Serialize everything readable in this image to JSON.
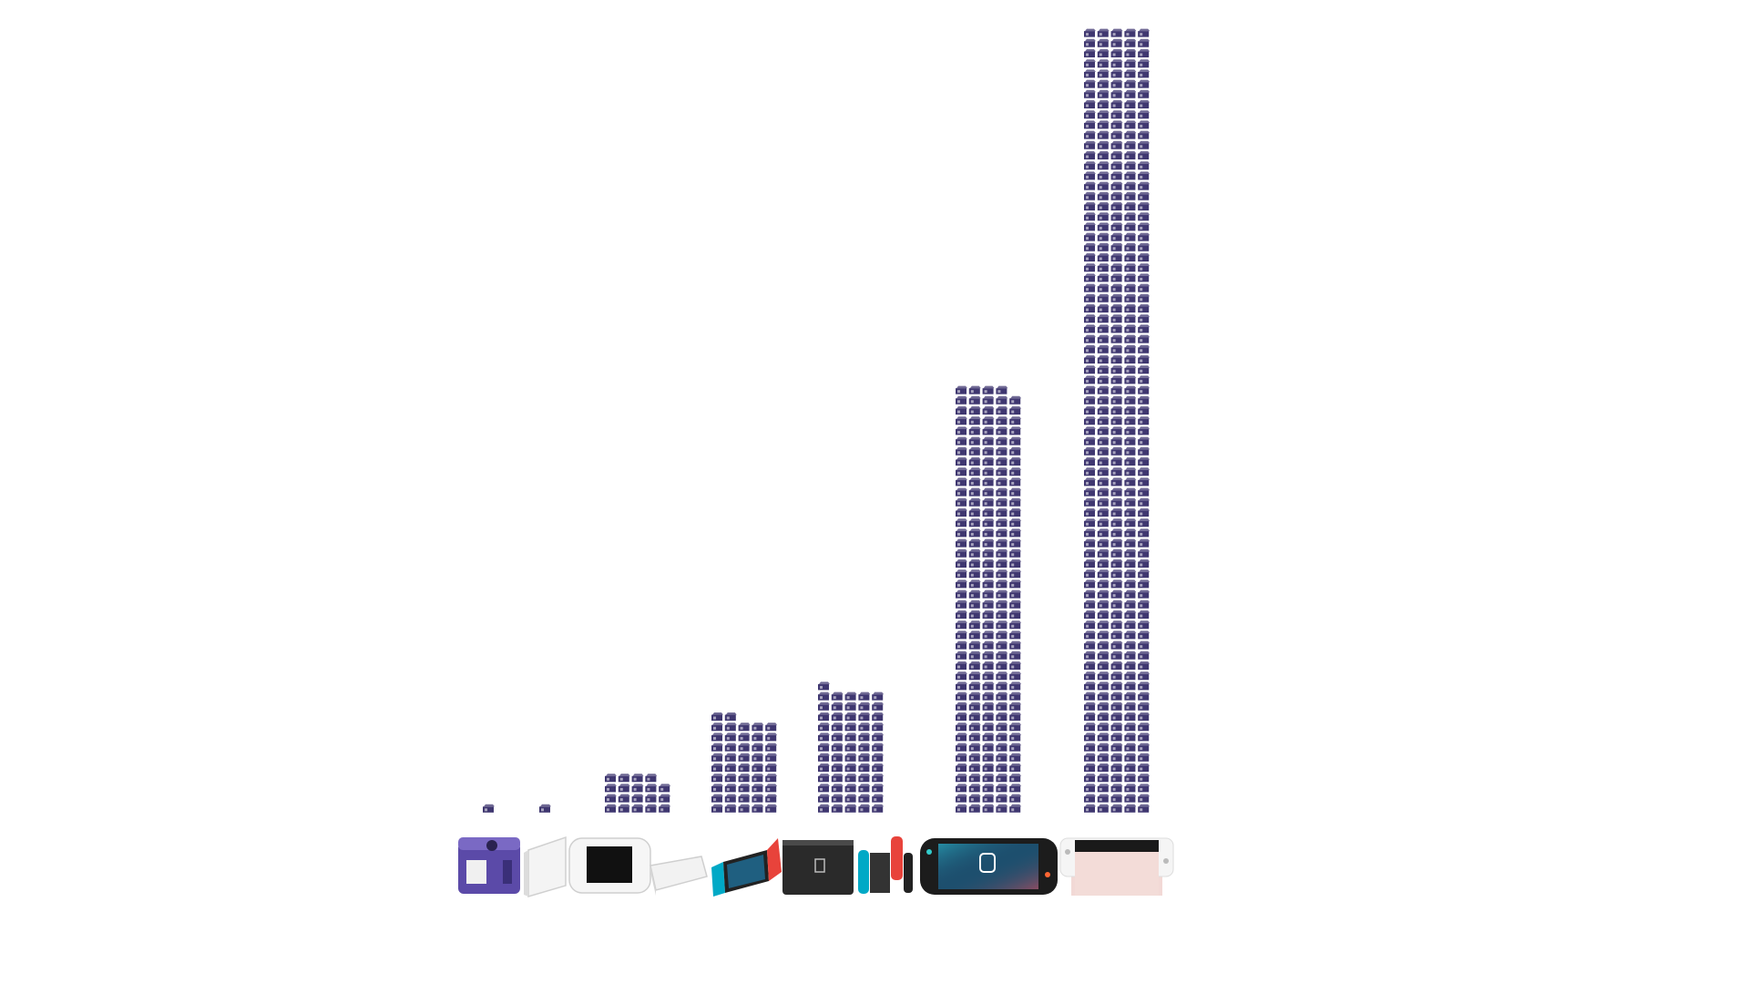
{
  "chart_data": {
    "type": "pictogram",
    "values": [
      1,
      1,
      19,
      47,
      61,
      209,
      385
    ],
    "color": "#3f3770"
  }
}
